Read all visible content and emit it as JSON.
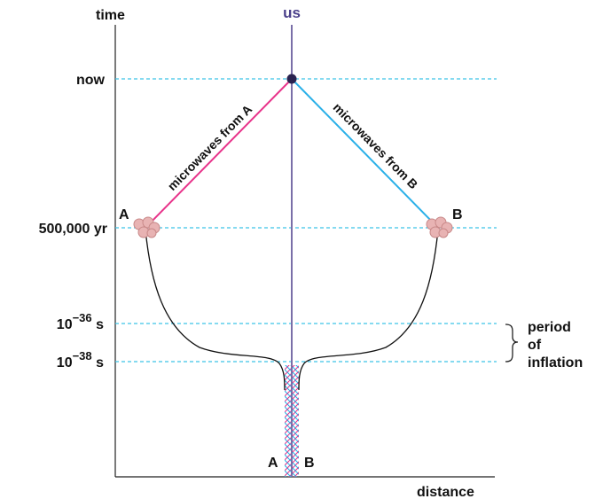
{
  "axes": {
    "y_label": "time",
    "x_label": "distance",
    "top_label": "us"
  },
  "time_marks": [
    {
      "id": "now",
      "label": "now"
    },
    {
      "id": "recomb",
      "label": "500,000 yr"
    },
    {
      "id": "t36",
      "base": "10",
      "exp": "−36",
      "unit": " s"
    },
    {
      "id": "t38",
      "base": "10",
      "exp": "−38",
      "unit": " s"
    }
  ],
  "rays": {
    "a_label": "microwaves from A",
    "b_label": "microwaves from B",
    "a_color": "#e8338a",
    "b_color": "#2ab0e8"
  },
  "points": {
    "a": "A",
    "b": "B",
    "bottom_a": "A",
    "bottom_b": "B"
  },
  "brace": {
    "lines": [
      "period",
      "of",
      "inflation"
    ]
  },
  "colors": {
    "dashed": "#3cc3e8",
    "us_line": "#7a6fa8",
    "observer": "#2a2350",
    "blob_fill": "#e8b3b3",
    "blob_stroke": "#c88888"
  }
}
